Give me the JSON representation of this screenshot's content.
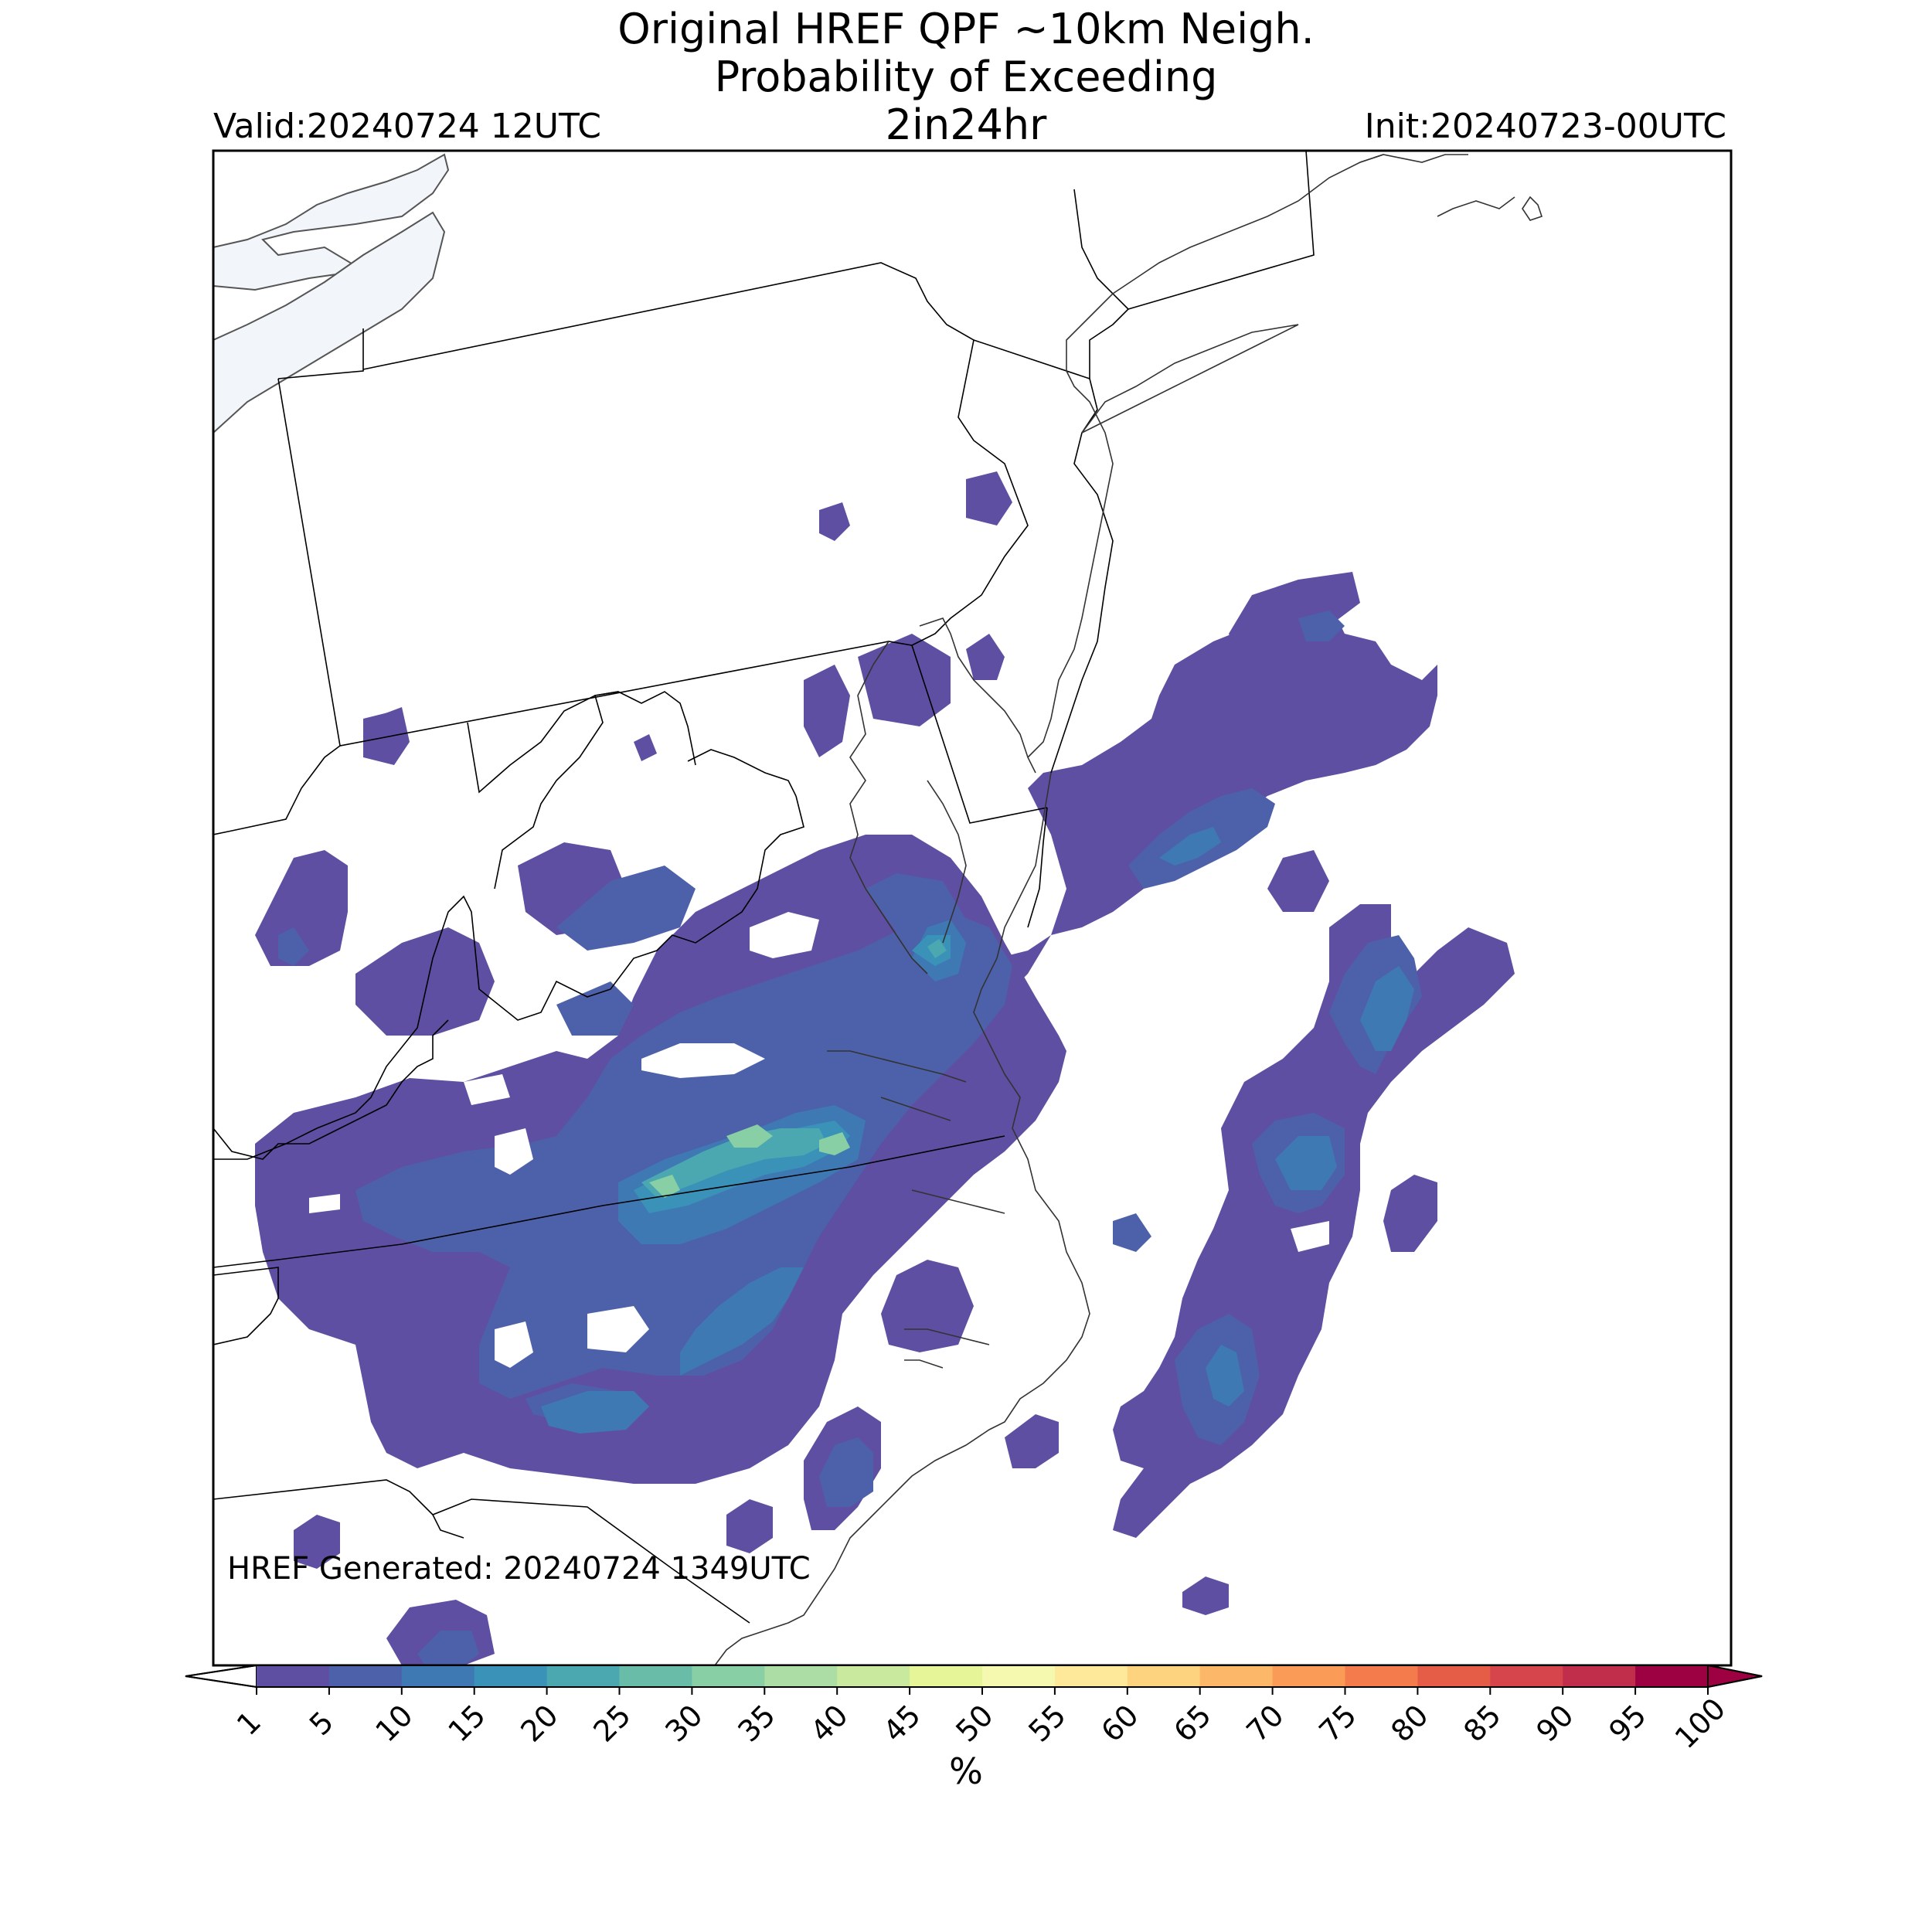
{
  "title": {
    "line1": "Original HREF QPF ~10km Neigh.",
    "line2": "Probability of Exceeding",
    "line3": "2in24hr"
  },
  "valid_label": "Valid:20240724 12UTC",
  "init_label": "Init:20240723-00UTC",
  "generated_label": "HREF Generated: 20240724 1349UTC",
  "colorbar": {
    "unit_label": "%",
    "ticks": [
      "1",
      "5",
      "10",
      "15",
      "20",
      "25",
      "30",
      "35",
      "40",
      "45",
      "50",
      "55",
      "60",
      "65",
      "70",
      "75",
      "80",
      "85",
      "90",
      "95",
      "100"
    ],
    "colors": [
      "#5e4fa2",
      "#4d61aa",
      "#3f79b4",
      "#3a92b8",
      "#4ba7b0",
      "#69bca7",
      "#89cfa5",
      "#abdda4",
      "#c9e99e",
      "#e6f598",
      "#f5f9b0",
      "#fee89a",
      "#fed380",
      "#fdb768",
      "#fa9b58",
      "#f47c4c",
      "#e65d47",
      "#d6454b",
      "#c02e4c",
      "#9e0142"
    ],
    "extend": "both"
  },
  "map": {
    "region": "Mid-Atlantic / Northeast US",
    "lake_color": "#f2f6fb",
    "shading_colors": {
      "low": "#5e4fa2",
      "mid": "#4d61aa",
      "mid_high": "#3f79b4",
      "high": "#3a92b8",
      "higher": "#4ba7b0",
      "peak": "#89cfa5"
    }
  }
}
